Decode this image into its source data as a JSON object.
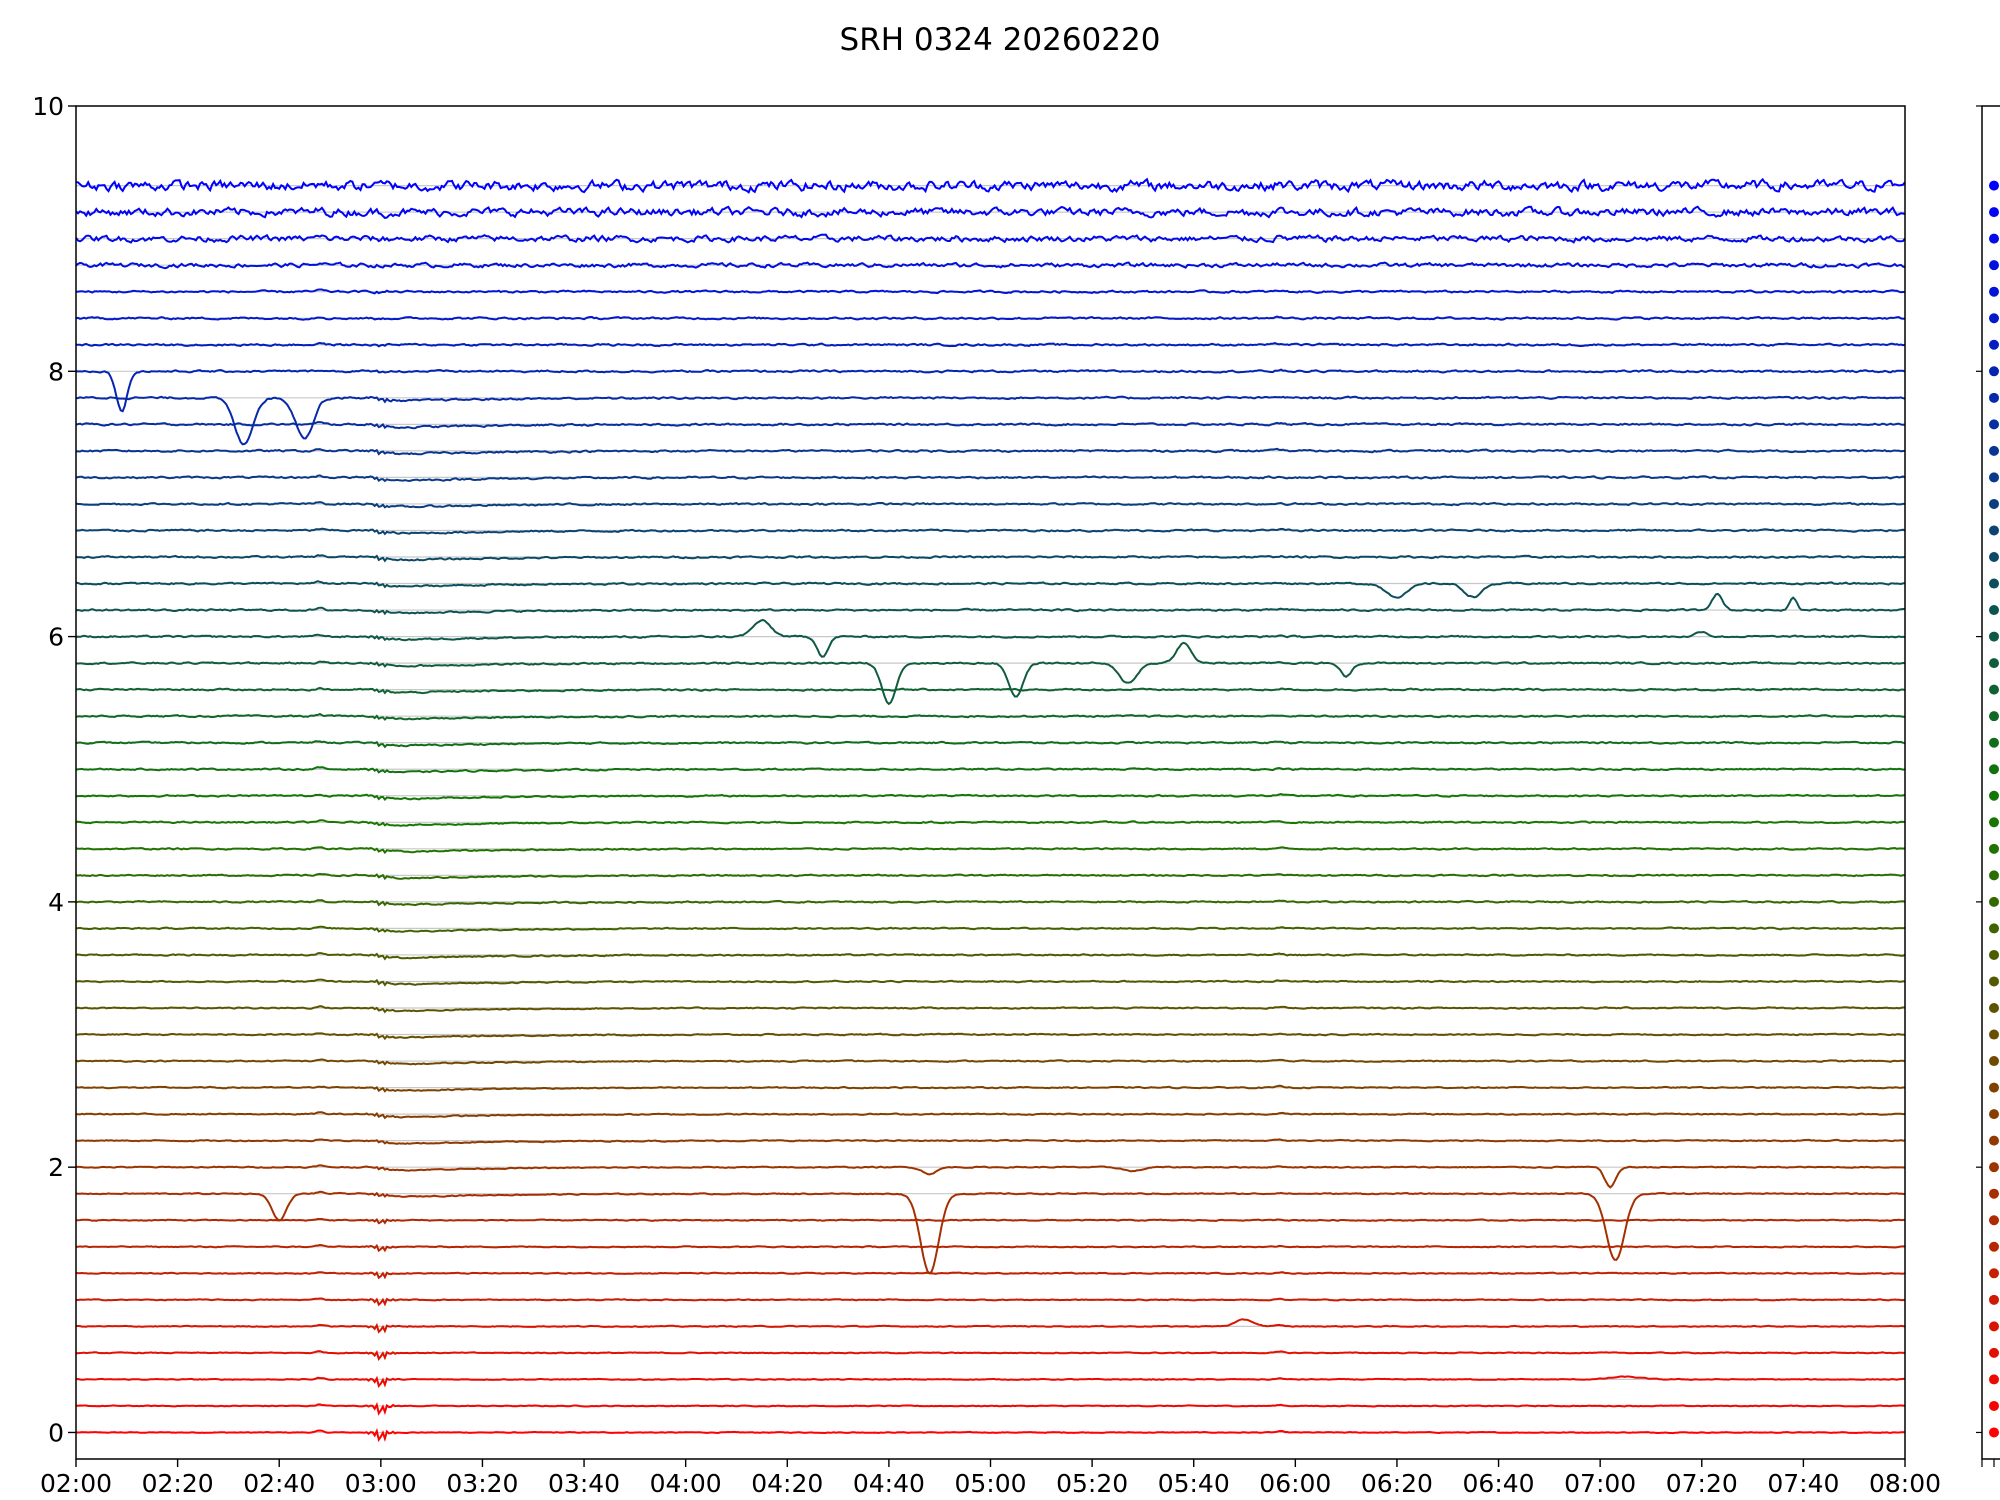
{
  "title": "SRH 0324 20260220",
  "chart_data": {
    "type": "line",
    "title": "SRH 0324 20260220",
    "xlabel": "",
    "ylabel": "",
    "x_ticks": [
      "02:00",
      "02:20",
      "02:40",
      "03:00",
      "03:20",
      "03:40",
      "04:00",
      "04:20",
      "04:40",
      "05:00",
      "05:20",
      "05:40",
      "06:00",
      "06:20",
      "06:40",
      "07:00",
      "07:20",
      "07:40",
      "08:00"
    ],
    "x_range_hours": [
      2.0,
      8.0
    ],
    "y_ticks": [
      0,
      2,
      4,
      6,
      8,
      10
    ],
    "ylim": [
      -0.2,
      10
    ],
    "grid": "horizontal lines at each channel baseline",
    "channel_count": 48,
    "channel_spacing": 0.2,
    "color_start": "#ff0000",
    "color_mid": "#137a00",
    "color_end": "#0000ff",
    "event_time": "03:00",
    "secondary_time": "02:48",
    "late_time": "05:57",
    "dips": [
      {
        "channel": 9,
        "time": "02:40",
        "depth": -0.2,
        "width_min": 4
      },
      {
        "channel": 9,
        "time": "04:48",
        "depth": -0.6,
        "width_min": 5
      },
      {
        "channel": 9,
        "time": "07:03",
        "depth": -0.5,
        "width_min": 5
      },
      {
        "channel": 10,
        "time": "04:48",
        "depth": -0.05,
        "width_min": 4
      },
      {
        "channel": 10,
        "time": "05:28",
        "depth": -0.03,
        "width_min": 5
      },
      {
        "channel": 10,
        "time": "07:02",
        "depth": -0.15,
        "width_min": 3
      },
      {
        "channel": 4,
        "time": "05:50",
        "depth": 0.05,
        "width_min": 5
      },
      {
        "channel": 2,
        "time": "07:05",
        "depth": 0.02,
        "width_min": 8
      },
      {
        "channel": 29,
        "time": "04:40",
        "depth": -0.3,
        "width_min": 4
      },
      {
        "channel": 29,
        "time": "05:05",
        "depth": -0.25,
        "width_min": 4
      },
      {
        "channel": 29,
        "time": "05:27",
        "depth": -0.15,
        "width_min": 5
      },
      {
        "channel": 29,
        "time": "05:38",
        "depth": 0.15,
        "width_min": 4
      },
      {
        "channel": 29,
        "time": "06:10",
        "depth": -0.1,
        "width_min": 3
      },
      {
        "channel": 30,
        "time": "04:15",
        "depth": 0.12,
        "width_min": 5
      },
      {
        "channel": 30,
        "time": "04:27",
        "depth": -0.15,
        "width_min": 3
      },
      {
        "channel": 30,
        "time": "07:20",
        "depth": 0.04,
        "width_min": 3
      },
      {
        "channel": 31,
        "time": "07:23",
        "depth": 0.12,
        "width_min": 3
      },
      {
        "channel": 31,
        "time": "07:38",
        "depth": 0.1,
        "width_min": 2
      },
      {
        "channel": 32,
        "time": "06:20",
        "depth": -0.1,
        "width_min": 6
      },
      {
        "channel": 32,
        "time": "06:35",
        "depth": -0.1,
        "width_min": 5
      },
      {
        "channel": 40,
        "time": "02:09",
        "depth": -0.3,
        "width_min": 3
      },
      {
        "channel": 39,
        "time": "02:33",
        "depth": -0.35,
        "width_min": 5
      },
      {
        "channel": 39,
        "time": "02:45",
        "depth": -0.3,
        "width_min": 5
      }
    ],
    "legend": "right-side colored marker column",
    "series": []
  }
}
